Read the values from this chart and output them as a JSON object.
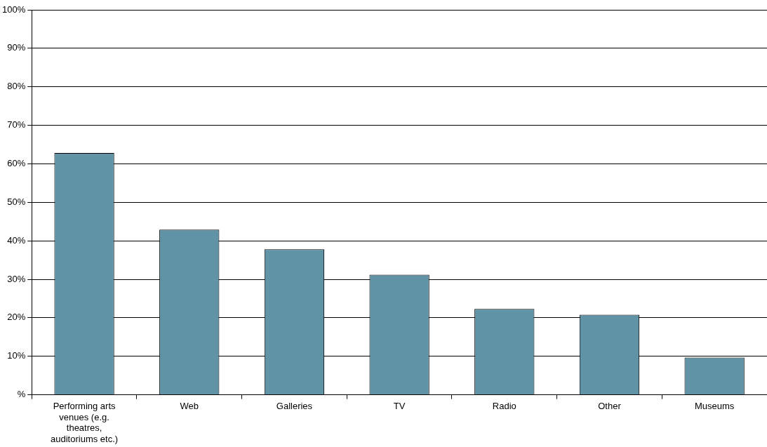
{
  "chart_data": {
    "type": "bar",
    "categories": [
      "Performing arts venues (e.g. theatres, auditoriums etc.)",
      "Web",
      "Galleries",
      "TV",
      "Radio",
      "Other",
      "Museums"
    ],
    "values": [
      62.8,
      42.9,
      37.8,
      31.2,
      22.3,
      20.8,
      9.7
    ],
    "color": "#5f93a5",
    "ylim": [
      0,
      100
    ],
    "yticks": [
      {
        "value": 0,
        "label": "%"
      },
      {
        "value": 10,
        "label": "10%"
      },
      {
        "value": 20,
        "label": "20%"
      },
      {
        "value": 30,
        "label": "30%"
      },
      {
        "value": 40,
        "label": "40%"
      },
      {
        "value": 50,
        "label": "50%"
      },
      {
        "value": 60,
        "label": "60%"
      },
      {
        "value": 70,
        "label": "70%"
      },
      {
        "value": 80,
        "label": "80%"
      },
      {
        "value": 90,
        "label": "90%"
      },
      {
        "value": 100,
        "label": "100%"
      }
    ],
    "grid": "y",
    "legend": false
  }
}
